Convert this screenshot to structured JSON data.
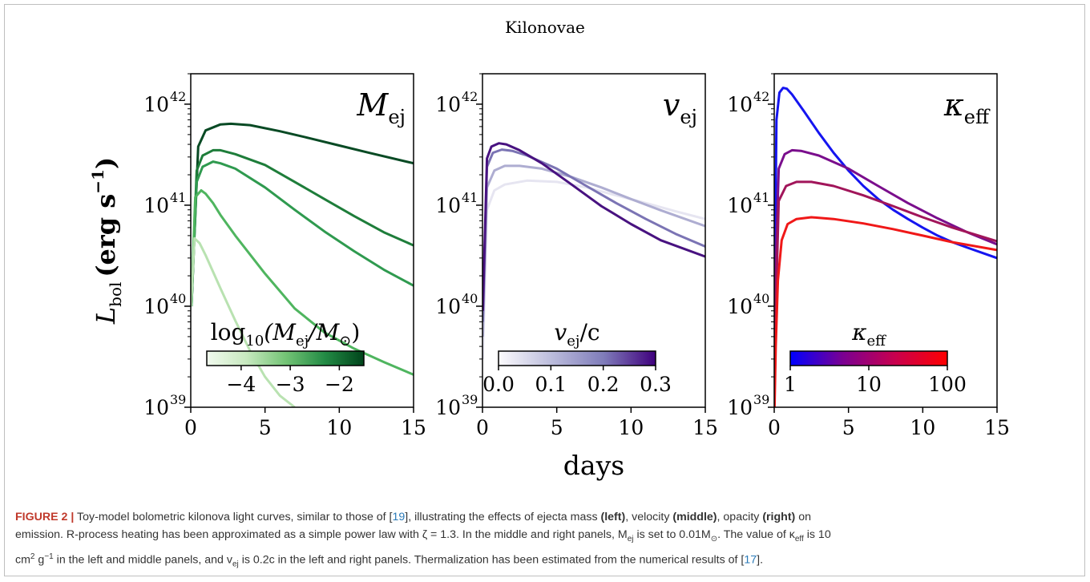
{
  "figure": {
    "title": "Kilonovae",
    "xlabel": "days",
    "ylabel_main": "L",
    "ylabel_sub": "bol",
    "ylabel_unit": "(erg s",
    "ylabel_unit_exp": "−1",
    "ylabel_close": ")",
    "y_ticks": [
      {
        "base": "10",
        "exp": "42",
        "value": 1e+42
      },
      {
        "base": "10",
        "exp": "41",
        "value": 1e+41
      },
      {
        "base": "10",
        "exp": "40",
        "value": 1e+40
      },
      {
        "base": "10",
        "exp": "39",
        "value": 1e+39
      }
    ],
    "x_ticks": [
      "0",
      "5",
      "10",
      "15"
    ]
  },
  "caption": {
    "label": "FIGURE 2 |",
    "line1_pre": " Toy-model bolometric kilonova light curves, similar to those of [",
    "ref1": "19",
    "line1_mid": "], illustrating the effects of ejecta mass ",
    "b_left": "(left)",
    "sep1": ", velocity ",
    "b_middle": "(middle)",
    "sep2": ", opacity ",
    "b_right": "(right)",
    "line1_end": " on",
    "line2": "emission. R-process heating has been approximated as a simple power law with ζ = 1.3. In the middle and right panels, M",
    "line2_sub": "ej",
    "line2_b": " is set to 0.01M",
    "line2_c": ". The value of κ",
    "line2_d": "eff",
    "line2_e": " is 10",
    "line3_a": "cm",
    "line3_sup": "2",
    "line3_b": " g",
    "line3_sup2": "−1",
    "line3_c": " in the left and middle panels, and v",
    "line3_sub": "ej",
    "line3_d": " is 0.2c in the left and right panels. Thermalization has been estimated from the numerical results of [",
    "ref2": "17",
    "line3_e": "]."
  },
  "chart_data": [
    {
      "type": "line",
      "panel": "left",
      "label": "M",
      "label_sub": "ej",
      "xlim": [
        0,
        15
      ],
      "ylim": [
        1e+39,
        2e+42
      ],
      "yscale": "log",
      "colorbar": {
        "label": "log10(Mej/M⊙)",
        "label_parts": [
          "log",
          "10",
          "(M",
          "ej",
          "/M",
          "⊙",
          ")"
        ],
        "ticks": [
          "−4",
          "−3",
          "−2"
        ],
        "tick_values": [
          -4,
          -3,
          -2
        ],
        "range": [
          -4.7,
          -1.5
        ],
        "colors": [
          "#f1faee",
          "#c8e9c0",
          "#74c476",
          "#238b45",
          "#00441b"
        ]
      },
      "series": [
        {
          "log10_mej": -1.5,
          "color": "#084a24",
          "x": [
            0.05,
            0.5,
            1,
            2,
            2.7,
            4,
            6,
            8,
            10,
            12,
            15
          ],
          "y": [
            1e+40,
            3.8e+41,
            5.5e+41,
            6.3e+41,
            6.4e+41,
            6.2e+41,
            5.4e+41,
            4.6e+41,
            3.9e+41,
            3.3e+41,
            2.6e+41
          ]
        },
        {
          "log10_mej": -2.0,
          "color": "#1e7d3a",
          "x": [
            0.05,
            0.4,
            0.8,
            1.5,
            2,
            3,
            5,
            7,
            9,
            11,
            13,
            15
          ],
          "y": [
            1e+40,
            2.2e+41,
            3.1e+41,
            3.5e+41,
            3.5e+41,
            3.2e+41,
            2.5e+41,
            1.7e+41,
            1.15e+41,
            7.8e+40,
            5.4e+40,
            4e+40
          ]
        },
        {
          "log10_mej": -2.3,
          "color": "#2f9a4f",
          "x": [
            0.05,
            0.4,
            0.8,
            1.5,
            2,
            3,
            5,
            7,
            9,
            11,
            13,
            15
          ],
          "y": [
            1e+40,
            1.7e+41,
            2.4e+41,
            2.7e+41,
            2.6e+41,
            2.3e+41,
            1.5e+41,
            9e+40,
            5.5e+40,
            3.5e+40,
            2.3e+40,
            1.6e+40
          ]
        },
        {
          "log10_mej": -3.0,
          "color": "#4fb55f",
          "x": [
            0.03,
            0.3,
            0.7,
            1,
            1.5,
            2,
            3,
            5,
            7,
            9,
            11,
            13,
            15
          ],
          "y": [
            1e+40,
            1.2e+41,
            1.4e+41,
            1.3e+41,
            1.05e+41,
            8e+40,
            5e+40,
            2.1e+40,
            9.5e+39,
            5.5e+39,
            3.8e+39,
            2.8e+39,
            2.1e+39
          ]
        },
        {
          "log10_mej": -4.3,
          "color": "#b9e2b1",
          "x": [
            0.02,
            0.25,
            0.6,
            1,
            2,
            3,
            4,
            5,
            6,
            7
          ],
          "y": [
            1e+40,
            4.7e+40,
            4.2e+40,
            3.2e+40,
            1.5e+40,
            7.2e+39,
            3.6e+39,
            2e+39,
            1.3e+39,
            1e+39
          ]
        }
      ]
    },
    {
      "type": "line",
      "panel": "middle",
      "label": "v",
      "label_sub": "ej",
      "xlim": [
        0,
        15
      ],
      "ylim": [
        1e+39,
        2e+42
      ],
      "yscale": "log",
      "colorbar": {
        "label": "vej/c",
        "label_parts": [
          "v",
          "ej",
          "/c"
        ],
        "ticks": [
          "0.0",
          "0.1",
          "0.2",
          "0.3"
        ],
        "tick_values": [
          0.0,
          0.1,
          0.2,
          0.3
        ],
        "range": [
          0.0,
          0.3
        ],
        "colors": [
          "#fcfbfd",
          "#bcbddc",
          "#807dba",
          "#3f007d"
        ]
      },
      "series": [
        {
          "vej_c": 0.05,
          "color": "#e6e5f1",
          "x": [
            0.02,
            0.3,
            0.8,
            1.5,
            3,
            5,
            7,
            9,
            11,
            13,
            15
          ],
          "y": [
            3e+39,
            9e+40,
            1.4e+41,
            1.6e+41,
            1.75e+41,
            1.7e+41,
            1.5e+41,
            1.25e+41,
            1.05e+41,
            8.7e+40,
            7.3e+40
          ]
        },
        {
          "vej_c": 0.1,
          "color": "#aeadd1",
          "x": [
            0.02,
            0.3,
            0.8,
            1.5,
            2.5,
            4,
            6,
            8,
            10,
            12,
            15
          ],
          "y": [
            5e+39,
            1.5e+41,
            2.2e+41,
            2.45e+41,
            2.45e+41,
            2.3e+41,
            1.9e+41,
            1.5e+41,
            1.15e+41,
            8.9e+40,
            6.2e+40
          ]
        },
        {
          "vej_c": 0.2,
          "color": "#7b74b4",
          "x": [
            0.02,
            0.3,
            0.7,
            1.3,
            2,
            3,
            5,
            7,
            9,
            11,
            13,
            15
          ],
          "y": [
            7e+39,
            2.4e+41,
            3.3e+41,
            3.55e+41,
            3.45e+41,
            3.1e+41,
            2.3e+41,
            1.55e+41,
            1.05e+41,
            7.3e+40,
            5.2e+40,
            3.9e+40
          ]
        },
        {
          "vej_c": 0.3,
          "color": "#481280",
          "x": [
            0.02,
            0.3,
            0.6,
            1.1,
            1.6,
            2.5,
            4,
            6,
            8,
            10,
            12,
            15
          ],
          "y": [
            9e+39,
            2.9e+41,
            3.8e+41,
            4.1e+41,
            4e+41,
            3.5e+41,
            2.6e+41,
            1.6e+41,
            9.8e+40,
            6.5e+40,
            4.5e+40,
            3.1e+40
          ]
        }
      ]
    },
    {
      "type": "line",
      "panel": "right",
      "label": "κ",
      "label_sub": "eff",
      "xlim": [
        0,
        15
      ],
      "ylim": [
        1e+39,
        2e+42
      ],
      "yscale": "log",
      "colorbar": {
        "label": "κeff",
        "label_parts": [
          "κ",
          "eff"
        ],
        "ticks": [
          "1",
          "10",
          "100"
        ],
        "tick_values": [
          1,
          10,
          100
        ],
        "scale": "log",
        "range": [
          1,
          100
        ],
        "colors": [
          "#0000ff",
          "#7a0092",
          "#c8004e",
          "#ff0000"
        ]
      },
      "series": [
        {
          "kappa_eff": 1,
          "color": "#1515f0",
          "x": [
            0.02,
            0.15,
            0.35,
            0.6,
            0.85,
            1.2,
            2,
            3,
            4,
            5,
            6,
            7,
            8,
            9,
            10,
            11,
            12,
            13,
            15
          ],
          "y": [
            1e+40,
            7e+41,
            1.3e+42,
            1.45e+42,
            1.42e+42,
            1.25e+42,
            8.5e+41,
            5.2e+41,
            3.3e+41,
            2.2e+41,
            1.55e+41,
            1.15e+41,
            9e+40,
            7.3e+40,
            6e+40,
            5e+40,
            4.3e+40,
            3.8e+40,
            3e+40
          ]
        },
        {
          "kappa_eff": 5,
          "color": "#7a0e8c",
          "x": [
            0.02,
            0.3,
            0.7,
            1.2,
            1.8,
            3,
            5,
            7,
            9,
            11,
            13,
            15
          ],
          "y": [
            1e+40,
            2.3e+41,
            3.2e+41,
            3.5e+41,
            3.45e+41,
            3.1e+41,
            2.3e+41,
            1.55e+41,
            1.05e+41,
            7.4e+40,
            5.4e+40,
            4.1e+40
          ]
        },
        {
          "kappa_eff": 20,
          "color": "#a1155a",
          "x": [
            0.02,
            0.3,
            0.8,
            1.5,
            2.5,
            4,
            6,
            8,
            10,
            12,
            15
          ],
          "y": [
            3e+39,
            1.1e+41,
            1.55e+41,
            1.7e+41,
            1.7e+41,
            1.55e+41,
            1.25e+41,
            9.8e+40,
            7.6e+40,
            6e+40,
            4.4e+40
          ]
        },
        {
          "kappa_eff": 100,
          "color": "#f01818",
          "x": [
            0.02,
            0.1,
            0.25,
            0.5,
            0.9,
            1.5,
            2.5,
            4,
            6,
            8,
            10,
            12,
            15
          ],
          "y": [
            1e+39,
            4e+39,
            1.8e+40,
            4.5e+40,
            6.5e+40,
            7.3e+40,
            7.6e+40,
            7.3e+40,
            6.6e+40,
            5.8e+40,
            5e+40,
            4.3e+40,
            3.6e+40
          ]
        }
      ]
    }
  ]
}
